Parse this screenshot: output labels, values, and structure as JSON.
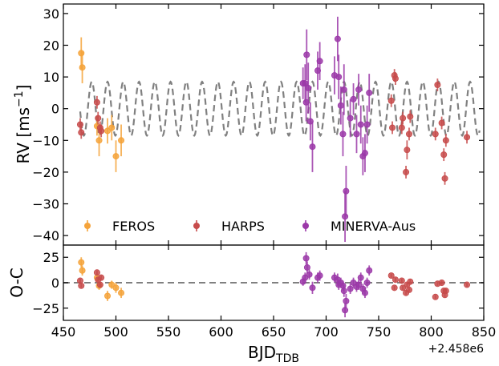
{
  "chart_data": [
    {
      "type": "scatter",
      "panel": "main",
      "ylabel_base": "RV [ms",
      "ylabel_sup": "−1",
      "ylabel_end": "]",
      "xlim": [
        450,
        850
      ],
      "ylim": [
        -43,
        33
      ],
      "yticks": [
        30,
        20,
        10,
        0,
        -10,
        -20,
        -30,
        -40
      ],
      "ytick_labels": [
        "30",
        "20",
        "10",
        "0",
        "−10",
        "−20",
        "−30",
        "−40"
      ],
      "legend_position": "lower-left",
      "model": {
        "type": "sinusoid",
        "amplitude": 8.5,
        "period": 15.0,
        "phase_x": 462.0,
        "color": "#808080",
        "style": "dashed"
      },
      "series": [
        {
          "name": "FEROS",
          "color": "#f5a33a",
          "points": [
            {
              "x": 467,
              "y": 17.5,
              "err": 5
            },
            {
              "x": 468,
              "y": 13.0,
              "err": 5
            },
            {
              "x": 482,
              "y": -5.5,
              "err": 3
            },
            {
              "x": 484,
              "y": -10.0,
              "err": 5
            },
            {
              "x": 492,
              "y": -7.0,
              "err": 4
            },
            {
              "x": 496,
              "y": -6.0,
              "err": 4
            },
            {
              "x": 500,
              "y": -15.0,
              "err": 5
            },
            {
              "x": 505,
              "y": -10.0,
              "err": 5
            }
          ]
        },
        {
          "name": "HARPS",
          "color": "#c74b4b",
          "points": [
            {
              "x": 466,
              "y": -5.0,
              "err": 2
            },
            {
              "x": 467,
              "y": -7.5,
              "err": 2
            },
            {
              "x": 482,
              "y": 2.0,
              "err": 2
            },
            {
              "x": 483,
              "y": -3.0,
              "err": 2
            },
            {
              "x": 485,
              "y": -6.0,
              "err": 2
            },
            {
              "x": 486,
              "y": -7.0,
              "err": 2
            },
            {
              "x": 762,
              "y": 2.5,
              "err": 2
            },
            {
              "x": 763,
              "y": -6.0,
              "err": 2
            },
            {
              "x": 765,
              "y": 10.5,
              "err": 2
            },
            {
              "x": 766,
              "y": 9.5,
              "err": 2
            },
            {
              "x": 772,
              "y": -6.0,
              "err": 2
            },
            {
              "x": 773,
              "y": -3.0,
              "err": 2
            },
            {
              "x": 776,
              "y": -20.0,
              "err": 2
            },
            {
              "x": 777,
              "y": -13.0,
              "err": 3
            },
            {
              "x": 779,
              "y": -8.0,
              "err": 2
            },
            {
              "x": 780,
              "y": -2.5,
              "err": 2
            },
            {
              "x": 804,
              "y": -8.0,
              "err": 2
            },
            {
              "x": 806,
              "y": 7.5,
              "err": 2
            },
            {
              "x": 810,
              "y": -4.5,
              "err": 2
            },
            {
              "x": 812,
              "y": -14.5,
              "err": 2
            },
            {
              "x": 813,
              "y": -22.0,
              "err": 2
            },
            {
              "x": 814,
              "y": -10.0,
              "err": 2
            },
            {
              "x": 834,
              "y": -9.0,
              "err": 2
            }
          ]
        },
        {
          "name": "MINERVA-Aus",
          "color": "#9b38a8",
          "points": [
            {
              "x": 678,
              "y": 8.0,
              "err": 5
            },
            {
              "x": 680,
              "y": 8.0,
              "err": 6
            },
            {
              "x": 681,
              "y": 2.0,
              "err": 6
            },
            {
              "x": 681.5,
              "y": 17.0,
              "err": 8
            },
            {
              "x": 683,
              "y": 6.5,
              "err": 8
            },
            {
              "x": 685,
              "y": -4.0,
              "err": 6
            },
            {
              "x": 687,
              "y": -12.0,
              "err": 8
            },
            {
              "x": 692,
              "y": 12.0,
              "err": 6
            },
            {
              "x": 694,
              "y": 15.0,
              "err": 6
            },
            {
              "x": 708,
              "y": 10.5,
              "err": 6
            },
            {
              "x": 711,
              "y": 22.0,
              "err": 7
            },
            {
              "x": 712,
              "y": 10.0,
              "err": 7
            },
            {
              "x": 714,
              "y": 1.0,
              "err": 6
            },
            {
              "x": 716,
              "y": -8.0,
              "err": 7
            },
            {
              "x": 717,
              "y": 6.0,
              "err": 8
            },
            {
              "x": 718,
              "y": -34.0,
              "err": 8
            },
            {
              "x": 719,
              "y": -26.0,
              "err": 8
            },
            {
              "x": 723,
              "y": -3.0,
              "err": 6
            },
            {
              "x": 726,
              "y": 3.0,
              "err": 5
            },
            {
              "x": 729,
              "y": -8.0,
              "err": 6
            },
            {
              "x": 731,
              "y": 6.0,
              "err": 5
            },
            {
              "x": 733,
              "y": -5.0,
              "err": 6
            },
            {
              "x": 735,
              "y": -15.0,
              "err": 6
            },
            {
              "x": 737,
              "y": -14.0,
              "err": 6
            },
            {
              "x": 739,
              "y": -5.0,
              "err": 6
            },
            {
              "x": 741,
              "y": 5.0,
              "err": 6
            }
          ]
        }
      ]
    },
    {
      "type": "scatter",
      "panel": "residuals",
      "ylabel": "O-C",
      "xlabel_base": "BJD",
      "xlabel_sub": "TDB",
      "x_offset_label": "+2.458e6",
      "xlim": [
        450,
        850
      ],
      "ylim": [
        -37,
        37
      ],
      "xticks": [
        450,
        500,
        550,
        600,
        650,
        700,
        750,
        800,
        850
      ],
      "xtick_labels": [
        "450",
        "500",
        "550",
        "600",
        "650",
        "700",
        "750",
        "800",
        "850"
      ],
      "yticks": [
        25,
        0,
        -25
      ],
      "ytick_labels": [
        "25",
        "0",
        "−25"
      ],
      "zero_line": {
        "y": 0,
        "color": "#808080",
        "style": "dashed"
      },
      "series": [
        {
          "name": "FEROS",
          "color": "#f5a33a",
          "points": [
            {
              "x": 467,
              "y": 20,
              "err": 5
            },
            {
              "x": 468,
              "y": 12,
              "err": 5
            },
            {
              "x": 482,
              "y": 5,
              "err": 4
            },
            {
              "x": 484,
              "y": -3,
              "err": 4
            },
            {
              "x": 492,
              "y": -13,
              "err": 5
            },
            {
              "x": 496,
              "y": -2,
              "err": 4
            },
            {
              "x": 500,
              "y": -5,
              "err": 5
            },
            {
              "x": 505,
              "y": -10,
              "err": 5
            }
          ]
        },
        {
          "name": "HARPS",
          "color": "#c74b4b",
          "points": [
            {
              "x": 466,
              "y": 2,
              "err": 2
            },
            {
              "x": 467,
              "y": -3,
              "err": 2
            },
            {
              "x": 482,
              "y": 10,
              "err": 2
            },
            {
              "x": 483,
              "y": 3,
              "err": 2
            },
            {
              "x": 485,
              "y": -2,
              "err": 2
            },
            {
              "x": 486,
              "y": 5,
              "err": 2
            },
            {
              "x": 762,
              "y": 7,
              "err": 2
            },
            {
              "x": 765,
              "y": -5,
              "err": 2
            },
            {
              "x": 766,
              "y": 3,
              "err": 2
            },
            {
              "x": 772,
              "y": 2,
              "err": 2
            },
            {
              "x": 773,
              "y": -5,
              "err": 2
            },
            {
              "x": 776,
              "y": -10,
              "err": 2
            },
            {
              "x": 777,
              "y": -2,
              "err": 2
            },
            {
              "x": 779,
              "y": -7,
              "err": 2
            },
            {
              "x": 780,
              "y": 1,
              "err": 2
            },
            {
              "x": 804,
              "y": -14,
              "err": 2
            },
            {
              "x": 806,
              "y": -1,
              "err": 2
            },
            {
              "x": 810,
              "y": 0,
              "err": 2
            },
            {
              "x": 812,
              "y": -8,
              "err": 2
            },
            {
              "x": 813,
              "y": -12,
              "err": 2
            },
            {
              "x": 814,
              "y": -8,
              "err": 2
            },
            {
              "x": 834,
              "y": -2,
              "err": 2
            }
          ]
        },
        {
          "name": "MINERVA-Aus",
          "color": "#9b38a8",
          "points": [
            {
              "x": 678,
              "y": 1,
              "err": 4
            },
            {
              "x": 680,
              "y": 5,
              "err": 5
            },
            {
              "x": 681,
              "y": 24,
              "err": 6
            },
            {
              "x": 682,
              "y": 15,
              "err": 6
            },
            {
              "x": 684,
              "y": 8,
              "err": 5
            },
            {
              "x": 687,
              "y": -5,
              "err": 6
            },
            {
              "x": 692,
              "y": 5,
              "err": 5
            },
            {
              "x": 694,
              "y": 7,
              "err": 5
            },
            {
              "x": 708,
              "y": 5,
              "err": 5
            },
            {
              "x": 711,
              "y": 3,
              "err": 6
            },
            {
              "x": 712,
              "y": -2,
              "err": 5
            },
            {
              "x": 714,
              "y": 0,
              "err": 5
            },
            {
              "x": 716,
              "y": -3,
              "err": 5
            },
            {
              "x": 717,
              "y": -8,
              "err": 6
            },
            {
              "x": 718,
              "y": -27,
              "err": 7
            },
            {
              "x": 719,
              "y": -18,
              "err": 7
            },
            {
              "x": 723,
              "y": -6,
              "err": 5
            },
            {
              "x": 726,
              "y": 0,
              "err": 5
            },
            {
              "x": 729,
              "y": -4,
              "err": 5
            },
            {
              "x": 731,
              "y": -2,
              "err": 5
            },
            {
              "x": 733,
              "y": 5,
              "err": 5
            },
            {
              "x": 735,
              "y": -6,
              "err": 5
            },
            {
              "x": 737,
              "y": -10,
              "err": 5
            },
            {
              "x": 739,
              "y": 0,
              "err": 5
            },
            {
              "x": 741,
              "y": 12,
              "err": 5
            }
          ]
        }
      ]
    }
  ]
}
